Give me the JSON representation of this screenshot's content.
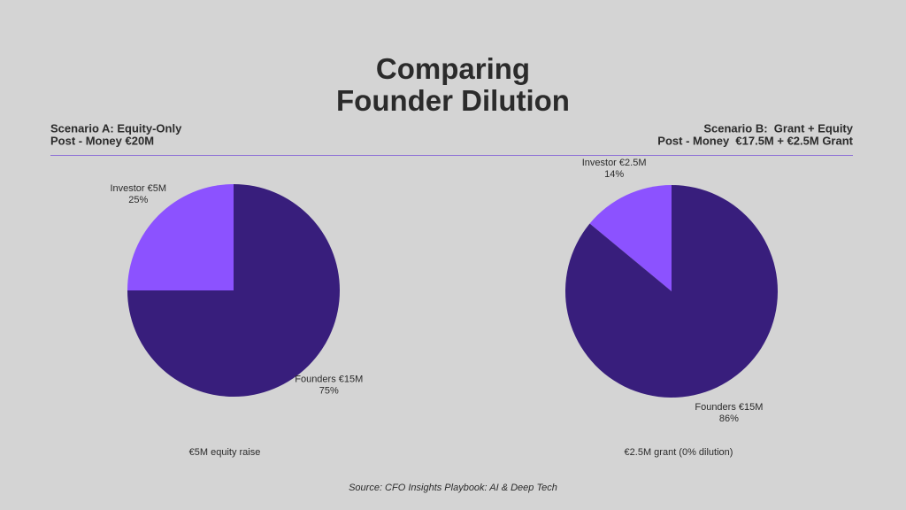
{
  "title": "Comparing Founder Dilution",
  "source": "Source: CFO Insights Playbook: AI & Deep Tech",
  "chart_data": [
    {
      "type": "pie",
      "title": "Scenario A: Equity-Only",
      "subtitle": "Post - Money €20M",
      "categories": [
        "Investor €5M",
        "Founders €15M"
      ],
      "values": [
        25,
        75
      ],
      "value_labels": [
        "25%",
        "75%"
      ],
      "colors": [
        "#8c52ff",
        "#381e7c"
      ],
      "annotation": "€5M equity raise"
    },
    {
      "type": "pie",
      "title": "Scenario B:  Grant + Equity",
      "subtitle": "Post - Money  €17.5M + €2.5M Grant",
      "categories": [
        "Investor €2.5M",
        "Founders €15M"
      ],
      "values": [
        14,
        86
      ],
      "value_labels": [
        "14%",
        "86%"
      ],
      "colors": [
        "#8c52ff",
        "#381e7c"
      ],
      "annotation": "€2.5M grant (0% dilution)"
    }
  ]
}
